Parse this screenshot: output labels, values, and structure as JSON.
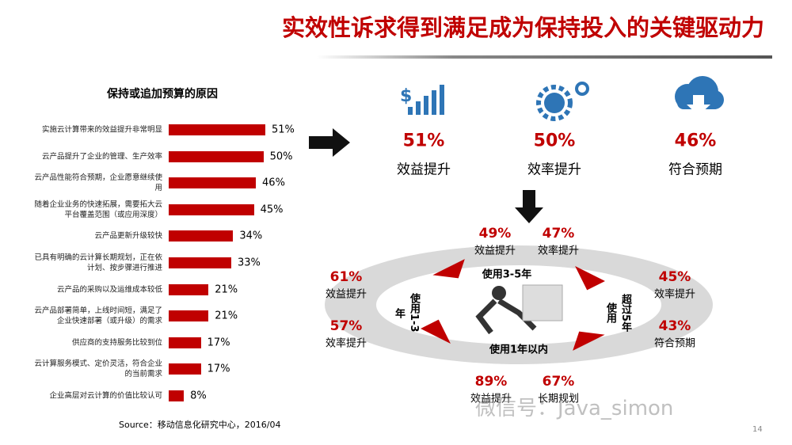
{
  "title": "实效性诉求得到满足成为保持投入的关键驱动力",
  "chart_data": {
    "type": "bar",
    "orientation": "horizontal",
    "title": "保持或追加预算的原因",
    "categories": [
      "实施云计算带来的效益提升非常明显",
      "云产品提升了企业的管理、生产效率",
      "云产品性能符合预期，企业愿意继续使用",
      "随着企业业务的快速拓展，需要拓大云平台覆盖范围（或应用深度）",
      "云产品更新升级较快",
      "已具有明确的云计算长期规划，正在依计划、按步骤进行推进",
      "云产品的采购以及运维成本较低",
      "云产品部署简单，上线时间短，满足了企业快速部署（或升级）的需求",
      "供应商的支持服务比较到位",
      "云计算服务模式、定价灵活，符合企业的当前需求",
      "企业高层对云计算的价值比较认可"
    ],
    "values": [
      51,
      50,
      46,
      45,
      34,
      33,
      21,
      21,
      17,
      17,
      8
    ],
    "value_labels": [
      "51%",
      "50%",
      "46%",
      "45%",
      "34%",
      "33%",
      "21%",
      "21%",
      "17%",
      "17%",
      "8%"
    ],
    "color": "#c00000"
  },
  "summary": [
    {
      "value": "51%",
      "label": "效益提升"
    },
    {
      "value": "50%",
      "label": "效率提升"
    },
    {
      "value": "46%",
      "label": "符合预期"
    }
  ],
  "stages": [
    {
      "name": "使用3-5年",
      "items": [
        {
          "value": "49%",
          "label": "效益提升"
        },
        {
          "value": "47%",
          "label": "效率提升"
        }
      ]
    },
    {
      "name": "使用1-3年",
      "items": [
        {
          "value": "61%",
          "label": "效益提升"
        },
        {
          "value": "57%",
          "label": "效率提升"
        }
      ]
    },
    {
      "name": "超过5年使用",
      "items": [
        {
          "value": "45%",
          "label": "效率提升"
        },
        {
          "value": "43%",
          "label": "符合预期"
        }
      ]
    },
    {
      "name": "使用1年以内",
      "items": [
        {
          "value": "89%",
          "label": "效益提升"
        },
        {
          "value": "67%",
          "label": "长期规划"
        }
      ]
    }
  ],
  "source": "Source：移动信息化研究中心，2016/04",
  "page_number": "14",
  "watermark": "微信号：Java_simon"
}
